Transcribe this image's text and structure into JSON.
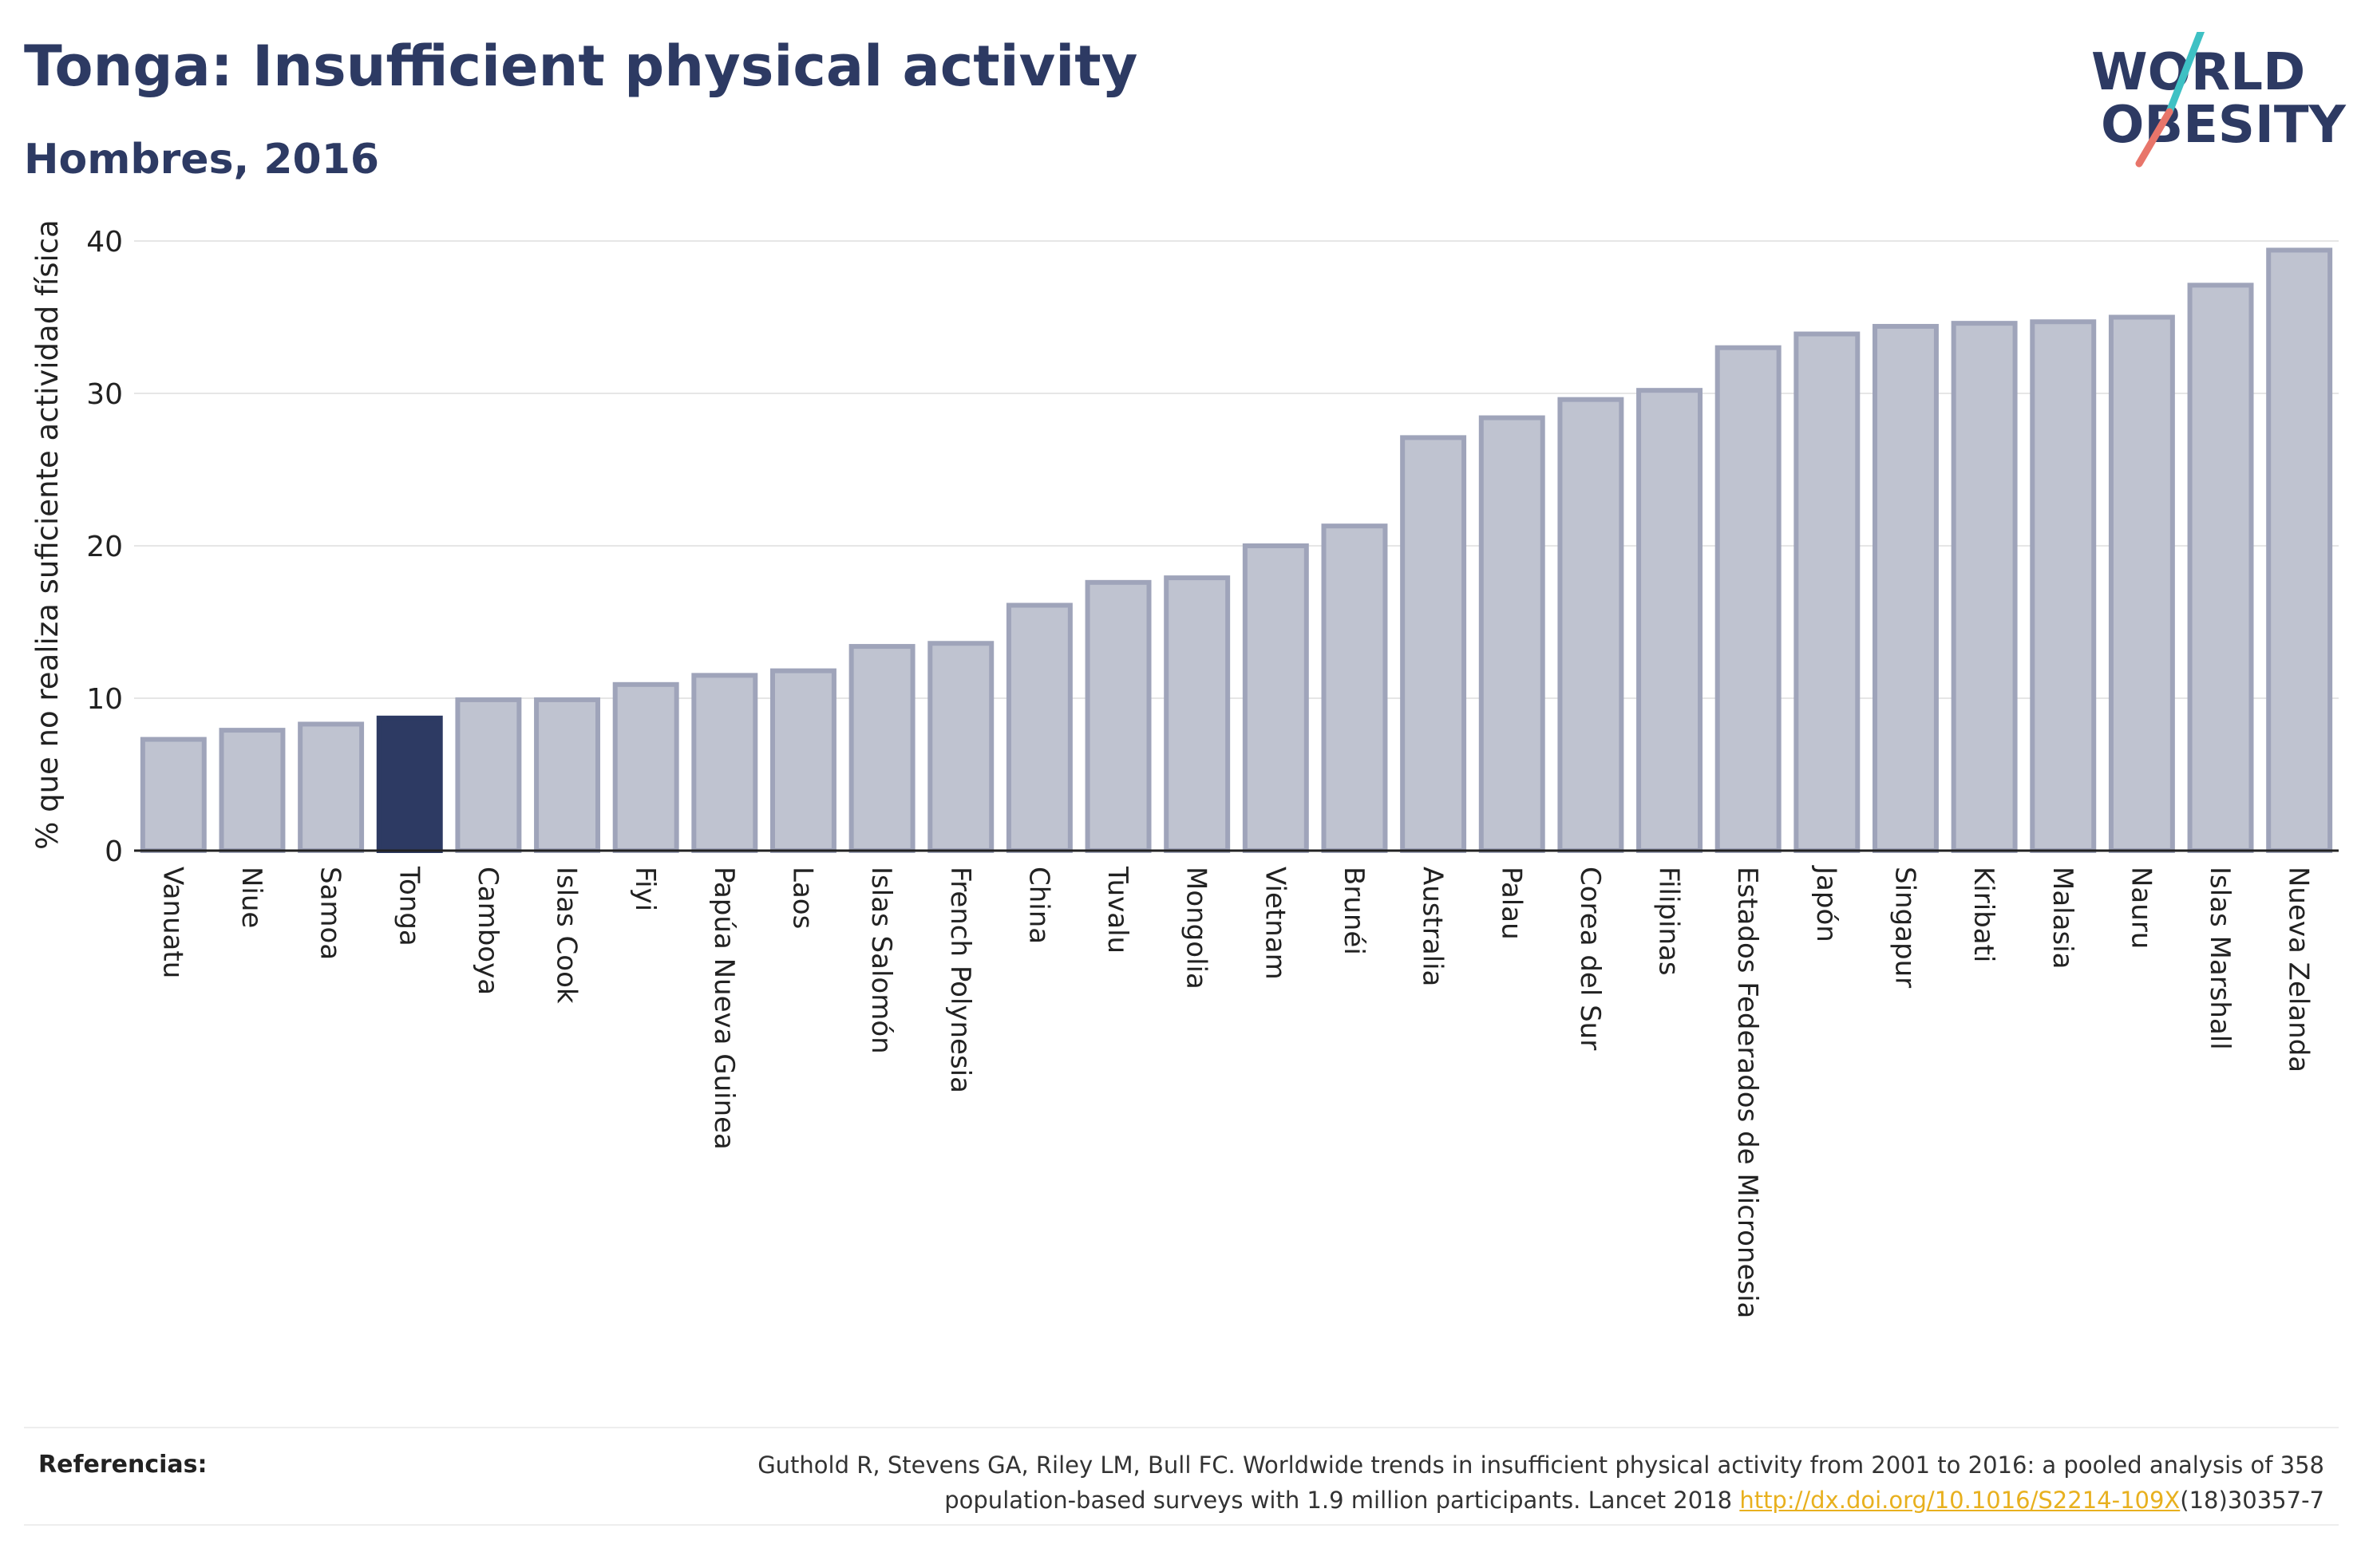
{
  "header": {
    "title": "Tonga: Insufficient physical activity",
    "subtitle": "Hombres, 2016"
  },
  "logo": {
    "line1": "WORLD",
    "line2": "OBESITY"
  },
  "colors": {
    "bar": "#bfc3d0",
    "bar_stroke": "#9fa4ba",
    "highlight": "#2d3a63",
    "grid": "#e6e6e6",
    "logo_teal": "#3ec1c4",
    "logo_red": "#e8756a"
  },
  "chart_data": {
    "type": "bar",
    "title": "Tonga: Insufficient physical activity",
    "subtitle": "Hombres, 2016",
    "xlabel": "",
    "ylabel": "% que no realiza suficiente actividad física",
    "ylim": [
      0,
      40
    ],
    "yticks": [
      0,
      10,
      20,
      30,
      40
    ],
    "grid": true,
    "highlight": "Tonga",
    "categories": [
      "Vanuatu",
      "Niue",
      "Samoa",
      "Tonga",
      "Camboya",
      "Islas Cook",
      "Fiyi",
      "Papúa Nueva Guinea",
      "Laos",
      "Islas Salomón",
      "French Polynesia",
      "China",
      "Tuvalu",
      "Mongolia",
      "Vietnam",
      "Brunéi",
      "Australia",
      "Palau",
      "Corea del Sur",
      "Filipinas",
      "Estados Federados de Micronesia",
      "Japón",
      "Singapur",
      "Kiribati",
      "Malasia",
      "Nauru",
      "Islas Marshall",
      "Nueva Zelanda"
    ],
    "values": [
      7.3,
      7.9,
      8.3,
      8.7,
      9.9,
      9.9,
      10.9,
      11.5,
      11.8,
      13.4,
      13.6,
      16.1,
      17.6,
      17.9,
      20.0,
      21.3,
      27.1,
      28.4,
      29.6,
      30.2,
      33.0,
      33.9,
      34.4,
      34.6,
      34.7,
      35.0,
      37.1,
      39.4
    ]
  },
  "references": {
    "label": "Referencias:",
    "line1": "Guthold R, Stevens GA, Riley LM, Bull FC. Worldwide trends in insufficient physical activity from 2001 to 2016: a pooled analysis of 358",
    "line2_before": "population-based surveys with 1.9 million participants. Lancet 2018 ",
    "link": "http://dx.doi.org/10.1016/S2214-109X",
    "line2_after": "(18)30357-7"
  }
}
